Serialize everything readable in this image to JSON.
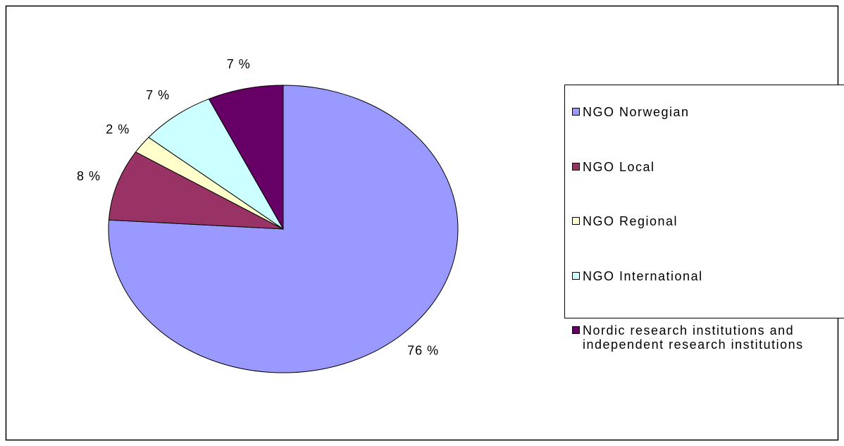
{
  "chart_data": {
    "type": "pie",
    "categories": [
      "NGO Norwegian",
      "NGO Local",
      "NGO Regional",
      "NGO International",
      "Nordic research institutions and independent research institutions"
    ],
    "values": [
      76,
      8,
      2,
      7,
      7
    ],
    "value_labels": [
      "76 %",
      "8 %",
      "2 %",
      "7 %",
      "7 %"
    ],
    "colors": [
      "#9999ff",
      "#993366",
      "#ffffcc",
      "#ccffff",
      "#660066"
    ],
    "legend": "right"
  }
}
